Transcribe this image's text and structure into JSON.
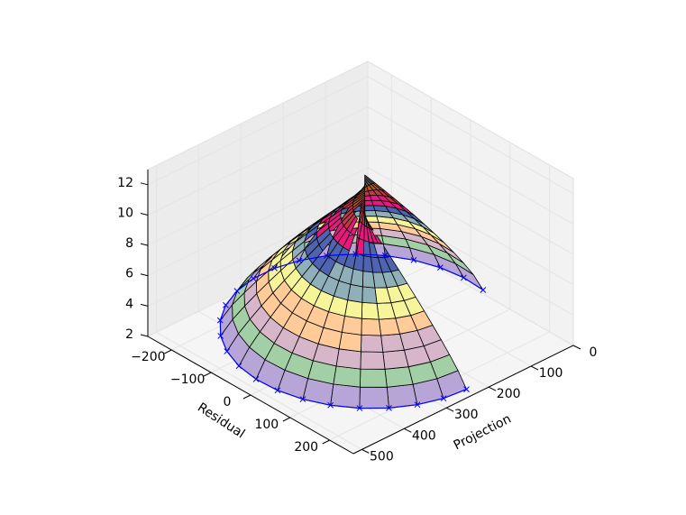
{
  "chart_data": {
    "type": "surface3d",
    "title": "",
    "xlabel": "Projection",
    "ylabel": "Residual",
    "zlabel": "",
    "x_ticks": [
      "0",
      "100",
      "200",
      "300",
      "400",
      "500"
    ],
    "y_ticks": [
      "−200",
      "−100",
      "0",
      "100",
      "200"
    ],
    "z_ticks": [
      "2",
      "4",
      "6",
      "8",
      "10",
      "12"
    ],
    "xlim": [
      0,
      520
    ],
    "ylim": [
      -260,
      260
    ],
    "zlim": [
      2,
      13
    ],
    "grid": true,
    "surface": {
      "rows": 24,
      "cols": 12,
      "projection_range": [
        0,
        520
      ],
      "residual_range": [
        -260,
        260
      ],
      "z_base": 2.5,
      "z_peak": 12.8,
      "colormap": [
        "#b7a5d8",
        "#a3cfa6",
        "#d7b6c9",
        "#ffcc99",
        "#f7f59a",
        "#8fb0b8",
        "#4f64b0",
        "#e6197e",
        "#c4394a",
        "#b25a22",
        "#666666"
      ]
    },
    "boundary_curve": {
      "color": "#0000ff",
      "marker": "x"
    }
  }
}
